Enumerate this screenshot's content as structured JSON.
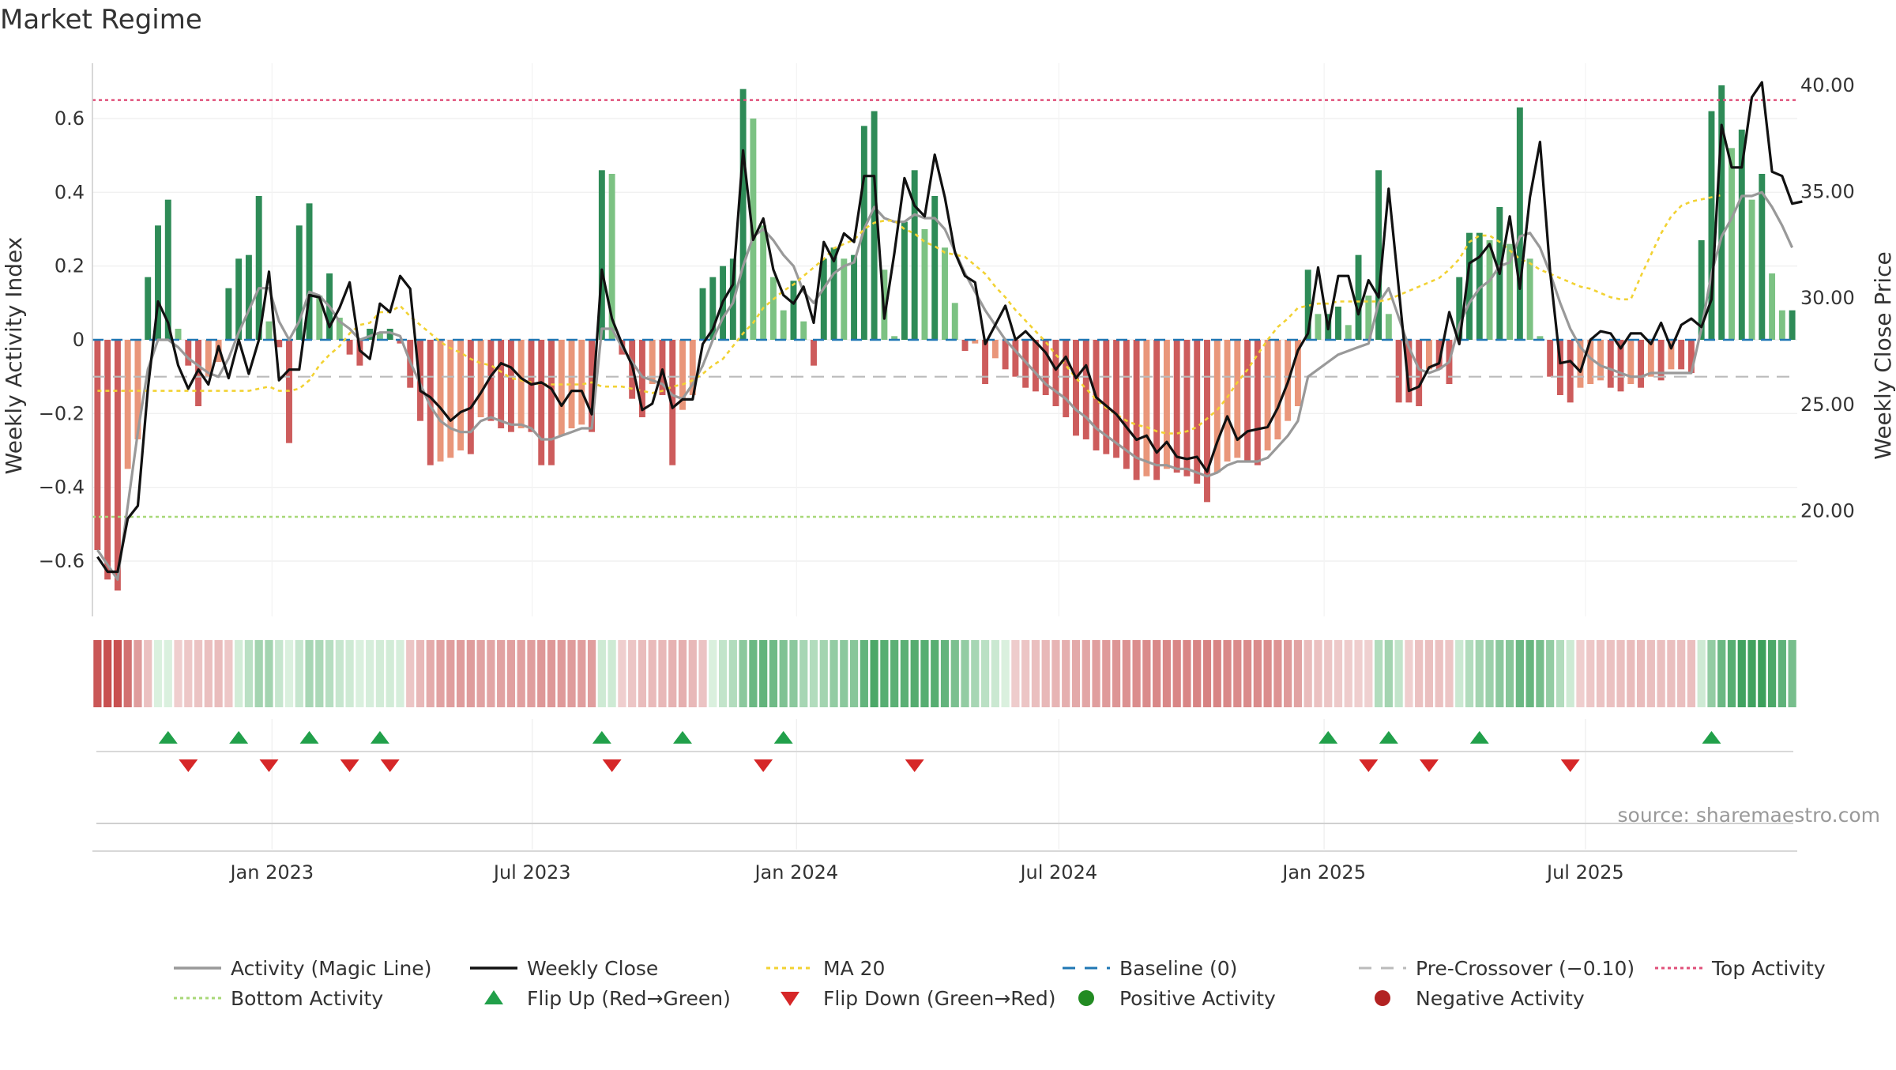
{
  "title": "Market Regime",
  "source": "source: sharemaestro.com",
  "colors": {
    "pos_dark": "#2e8b57",
    "pos_light": "#7cc283",
    "neg_dark": "#cd5c5c",
    "neg_light": "#e9967a",
    "activity_line": "#999999",
    "close_line": "#111111",
    "ma20": "#f2d233",
    "baseline": "#1f77b4",
    "pre_cross": "#bbbbbb",
    "top_activity": "#e0507a",
    "bottom_activity": "#a8d878",
    "flip_up": "#21a04a",
    "flip_down": "#d62728"
  },
  "chart_data": {
    "type": "bar",
    "left_axis": {
      "label": "Weekly Activity Index",
      "ylim": [
        -0.75,
        0.75
      ],
      "ticks": [
        0.6,
        0.4,
        0.2,
        0,
        -0.2,
        -0.4,
        -0.6
      ],
      "tick_labels": [
        "0.6",
        "0.4",
        "0.2",
        "0",
        "−0.2",
        "−0.4",
        "−0.6"
      ]
    },
    "right_axis": {
      "label": "Weekly Close Price",
      "ylim": [
        15.0,
        41.0
      ],
      "ticks": [
        40,
        35,
        30,
        25,
        20
      ],
      "tick_labels": [
        "40.00",
        "35.00",
        "30.00",
        "25.00",
        "20.00"
      ]
    },
    "x_axis": {
      "start": "2022-09-05",
      "interval": "weekly",
      "tick_labels": [
        "Jan 2023",
        "Jul 2023",
        "Jan 2024",
        "Jul 2024",
        "Jan 2025",
        "Jul 2025"
      ],
      "tick_weeks": [
        17.3,
        43.1,
        69.3,
        95.3,
        121.6,
        147.5
      ]
    },
    "reference_lines": {
      "baseline": 0,
      "pre_crossover": -0.1,
      "top_activity": 0.65,
      "bottom_activity": -0.48
    },
    "activity_bars": [
      -0.57,
      -0.65,
      -0.68,
      -0.35,
      -0.27,
      0.17,
      0.31,
      0.38,
      0.03,
      -0.07,
      -0.18,
      -0.1,
      -0.06,
      0.14,
      0.22,
      0.23,
      0.39,
      0.05,
      -0.02,
      -0.28,
      0.31,
      0.37,
      0.12,
      0.18,
      0.06,
      -0.04,
      -0.07,
      0.03,
      0.02,
      0.03,
      -0.01,
      -0.13,
      -0.22,
      -0.34,
      -0.33,
      -0.32,
      -0.3,
      -0.31,
      -0.21,
      -0.22,
      -0.24,
      -0.25,
      -0.24,
      -0.25,
      -0.34,
      -0.34,
      -0.26,
      -0.24,
      -0.23,
      -0.25,
      0.46,
      0.45,
      -0.04,
      -0.16,
      -0.21,
      -0.12,
      -0.15,
      -0.34,
      -0.19,
      -0.15,
      0.14,
      0.17,
      0.2,
      0.22,
      0.68,
      0.6,
      0.31,
      0.17,
      0.08,
      0.16,
      0.05,
      -0.07,
      0.22,
      0.25,
      0.22,
      0.23,
      0.58,
      0.62,
      0.19,
      0.01,
      0.32,
      0.46,
      0.3,
      0.39,
      0.25,
      0.1,
      -0.03,
      -0.01,
      -0.12,
      -0.05,
      -0.08,
      -0.1,
      -0.13,
      -0.14,
      -0.15,
      -0.18,
      -0.21,
      -0.26,
      -0.27,
      -0.3,
      -0.31,
      -0.32,
      -0.35,
      -0.38,
      -0.37,
      -0.38,
      -0.35,
      -0.36,
      -0.37,
      -0.39,
      -0.44,
      -0.36,
      -0.33,
      -0.32,
      -0.33,
      -0.34,
      -0.3,
      -0.27,
      -0.22,
      -0.18,
      0.19,
      0.07,
      0.07,
      0.09,
      0.04,
      0.23,
      0.12,
      0.46,
      0.07,
      -0.17,
      -0.17,
      -0.18,
      -0.08,
      -0.08,
      -0.12,
      0.17,
      0.29,
      0.29,
      0.27,
      0.36,
      0.26,
      0.63,
      0.22,
      0.01,
      -0.1,
      -0.15,
      -0.17,
      -0.13,
      -0.12,
      -0.11,
      -0.13,
      -0.14,
      -0.12,
      -0.13,
      -0.1,
      -0.11,
      -0.08,
      -0.08,
      -0.09,
      0.27,
      0.62,
      0.69,
      0.52,
      0.57,
      0.38,
      0.45,
      0.18,
      0.08,
      0.08
    ],
    "activity_line": [
      -0.57,
      -0.61,
      -0.65,
      -0.45,
      -0.25,
      -0.08,
      0,
      0,
      -0.02,
      -0.05,
      -0.07,
      -0.09,
      -0.1,
      -0.05,
      0.02,
      0.08,
      0.14,
      0.14,
      0.05,
      0,
      0.05,
      0.13,
      0.12,
      0.09,
      0.05,
      0.03,
      0,
      0.01,
      0.02,
      0.02,
      0.01,
      -0.06,
      -0.12,
      -0.18,
      -0.22,
      -0.24,
      -0.25,
      -0.25,
      -0.22,
      -0.21,
      -0.22,
      -0.23,
      -0.23,
      -0.24,
      -0.27,
      -0.27,
      -0.26,
      -0.25,
      -0.24,
      -0.24,
      0.03,
      0.03,
      -0.02,
      -0.06,
      -0.1,
      -0.11,
      -0.12,
      -0.15,
      -0.16,
      -0.12,
      -0.07,
      0,
      0.06,
      0.1,
      0.2,
      0.28,
      0.3,
      0.27,
      0.23,
      0.2,
      0.13,
      0.1,
      0.14,
      0.18,
      0.2,
      0.21,
      0.3,
      0.36,
      0.33,
      0.32,
      0.32,
      0.34,
      0.33,
      0.33,
      0.3,
      0.24,
      0.18,
      0.13,
      0.08,
      0.04,
      0,
      -0.03,
      -0.06,
      -0.09,
      -0.12,
      -0.14,
      -0.16,
      -0.19,
      -0.21,
      -0.24,
      -0.26,
      -0.28,
      -0.3,
      -0.32,
      -0.33,
      -0.34,
      -0.34,
      -0.35,
      -0.35,
      -0.36,
      -0.37,
      -0.36,
      -0.34,
      -0.33,
      -0.33,
      -0.33,
      -0.32,
      -0.29,
      -0.26,
      -0.22,
      -0.1,
      -0.08,
      -0.06,
      -0.04,
      -0.03,
      -0.02,
      -0.01,
      0.1,
      0.14,
      0.06,
      -0.02,
      -0.08,
      -0.09,
      -0.08,
      -0.06,
      0.04,
      0.1,
      0.14,
      0.16,
      0.2,
      0.21,
      0.28,
      0.29,
      0.25,
      0.18,
      0.1,
      0.03,
      -0.02,
      -0.05,
      -0.07,
      -0.08,
      -0.09,
      -0.1,
      -0.1,
      -0.09,
      -0.09,
      -0.09,
      -0.09,
      -0.09,
      0.03,
      0.18,
      0.28,
      0.33,
      0.39,
      0.39,
      0.4,
      0.36,
      0.31,
      0.25
    ],
    "weekly_close": [
      17.8,
      17.1,
      17.1,
      19.6,
      20.2,
      25.7,
      29.8,
      28.8,
      26.8,
      25.7,
      26.6,
      25.9,
      27.7,
      26.2,
      28.0,
      26.4,
      28.0,
      31.2,
      26.1,
      26.6,
      26.6,
      30.1,
      30.0,
      28.6,
      29.5,
      30.7,
      27.5,
      27.1,
      29.7,
      29.3,
      31.0,
      30.4,
      25.6,
      25.3,
      24.8,
      24.2,
      24.6,
      24.8,
      25.5,
      26.3,
      26.9,
      26.7,
      26.2,
      25.9,
      26.0,
      25.7,
      24.9,
      25.6,
      25.6,
      24.5,
      31.3,
      29.0,
      27.8,
      26.8,
      24.7,
      25.0,
      26.6,
      24.8,
      25.2,
      25.2,
      27.8,
      28.5,
      29.8,
      30.6,
      36.9,
      32.7,
      33.7,
      31.3,
      30.1,
      29.7,
      30.5,
      28.8,
      32.6,
      31.7,
      33.0,
      32.6,
      35.7,
      35.7,
      29.0,
      32.1,
      35.6,
      34.3,
      33.8,
      36.7,
      34.7,
      32.1,
      31.0,
      30.7,
      27.8,
      28.7,
      29.6,
      28.0,
      28.4,
      27.9,
      27.4,
      26.6,
      27.2,
      26.2,
      26.8,
      25.3,
      24.9,
      24.5,
      23.9,
      23.3,
      23.5,
      22.7,
      23.2,
      22.5,
      22.4,
      22.5,
      21.8,
      23.2,
      24.4,
      23.3,
      23.7,
      23.8,
      23.9,
      24.8,
      26.0,
      27.5,
      28.3,
      31.4,
      28.5,
      31.0,
      31.0,
      29.2,
      30.8,
      30.0,
      35.1,
      30.4,
      25.6,
      25.8,
      26.7,
      26.9,
      29.3,
      27.8,
      31.6,
      31.9,
      32.5,
      31.1,
      33.8,
      30.4,
      34.7,
      37.3,
      31.2,
      26.9,
      27.0,
      26.5,
      28.0,
      28.4,
      28.3,
      27.6,
      28.3,
      28.3,
      27.8,
      28.8,
      27.6,
      28.7,
      29.0,
      28.6,
      29.9,
      38.1,
      36.1,
      36.1,
      39.4,
      40.1,
      35.9,
      35.7,
      34.4,
      34.5
    ],
    "ma20": [
      25.6,
      25.6,
      25.6,
      25.6,
      25.6,
      25.6,
      25.6,
      25.6,
      25.6,
      25.6,
      25.6,
      25.6,
      25.6,
      25.6,
      25.6,
      25.6,
      25.7,
      25.8,
      25.6,
      25.6,
      25.7,
      26.1,
      26.8,
      27.3,
      27.7,
      28.3,
      28.7,
      28.8,
      29.3,
      29.3,
      29.6,
      29.1,
      28.7,
      28.3,
      27.9,
      27.6,
      27.4,
      27.1,
      26.9,
      26.8,
      26.5,
      26.2,
      26.1,
      26.0,
      25.9,
      25.9,
      25.9,
      25.9,
      25.9,
      26.0,
      25.8,
      25.8,
      25.8,
      25.7,
      25.6,
      25.5,
      25.6,
      25.8,
      25.9,
      26.1,
      26.4,
      26.8,
      27.1,
      27.7,
      28.3,
      28.8,
      29.5,
      29.9,
      30.3,
      30.6,
      31.0,
      31.4,
      31.8,
      32.3,
      32.5,
      32.7,
      33.2,
      33.5,
      33.6,
      33.6,
      33.2,
      33.0,
      32.6,
      32.4,
      32.1,
      32.0,
      31.9,
      31.5,
      31.1,
      30.5,
      30.0,
      29.4,
      28.9,
      28.4,
      27.9,
      27.3,
      26.8,
      26.2,
      25.7,
      25.2,
      24.8,
      24.5,
      24.2,
      24.0,
      23.9,
      23.7,
      23.6,
      23.6,
      23.7,
      23.9,
      24.3,
      24.7,
      25.3,
      26.0,
      26.6,
      27.3,
      28.0,
      28.6,
      29.0,
      29.5,
      29.6,
      29.7,
      29.7,
      29.8,
      29.8,
      29.8,
      29.8,
      29.8,
      29.9,
      30.1,
      30.3,
      30.5,
      30.7,
      30.9,
      31.3,
      31.8,
      32.6,
      32.9,
      32.9,
      32.6,
      32.2,
      31.8,
      31.6,
      31.3,
      31.1,
      30.9,
      30.7,
      30.5,
      30.4,
      30.2,
      30.0,
      29.9,
      29.9,
      31.0,
      32.0,
      33.0,
      33.8,
      34.3,
      34.5,
      34.6,
      34.7,
      34.8
    ],
    "flip_up_weeks": [
      7,
      14,
      21,
      28,
      50,
      58,
      68,
      122,
      128,
      137,
      160
    ],
    "flip_down_weeks": [
      9,
      17,
      25,
      29,
      51,
      66,
      81,
      126,
      132,
      146
    ],
    "legend": [
      {
        "label": "Activity (Magic Line)",
        "symbol": "line-gray"
      },
      {
        "label": "Weekly Close",
        "symbol": "line-black"
      },
      {
        "label": "MA 20",
        "symbol": "line-yellow-dotted"
      },
      {
        "label": "Baseline (0)",
        "symbol": "line-blue-dashed"
      },
      {
        "label": "Pre-Crossover (−0.10)",
        "symbol": "line-gray-dashed"
      },
      {
        "label": "Top Activity",
        "symbol": "line-pink-dotted"
      },
      {
        "label": "Bottom Activity",
        "symbol": "line-green-dotted"
      },
      {
        "label": "Flip Up (Red→Green)",
        "symbol": "triangle-up-green"
      },
      {
        "label": "Flip Down (Green→Red)",
        "symbol": "triangle-down-red"
      },
      {
        "label": "Positive Activity",
        "symbol": "dot-green"
      },
      {
        "label": "Negative Activity",
        "symbol": "dot-red"
      }
    ]
  }
}
